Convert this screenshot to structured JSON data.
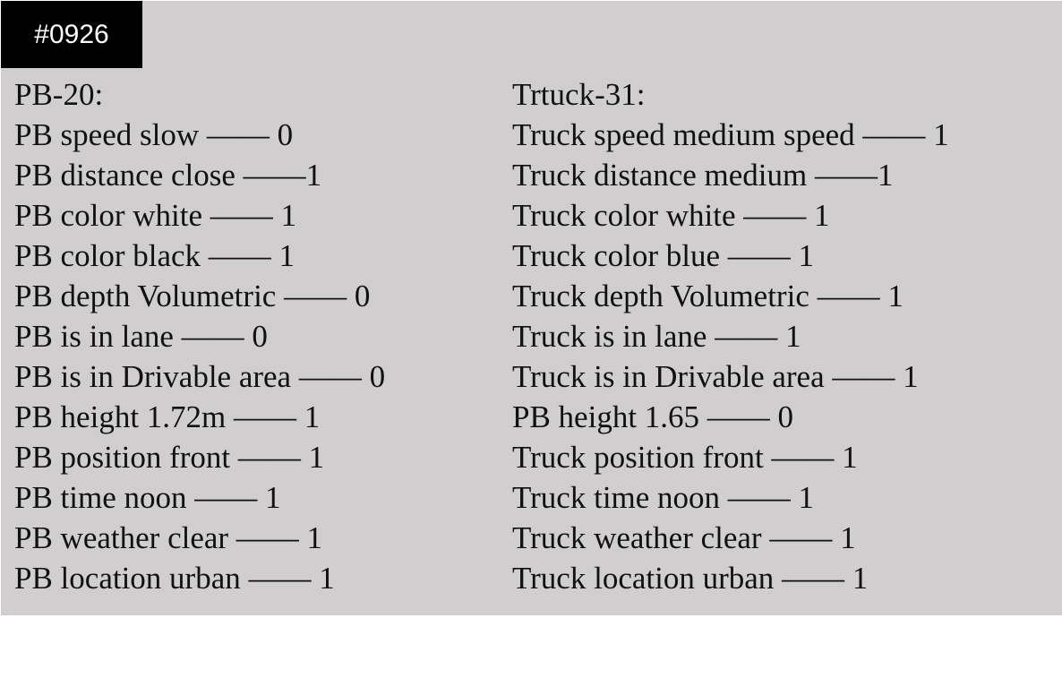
{
  "badge": "#0926",
  "left": {
    "title": "PB-20:",
    "lines": [
      "PB speed slow —— 0",
      "PB distance close ——1",
      "PB color white —— 1",
      "PB color black —— 1",
      "PB depth Volumetric —— 0",
      "PB is in lane —— 0",
      "PB is in Drivable area —— 0",
      "PB height 1.72m —— 1",
      "PB position front —— 1",
      "PB time noon —— 1",
      "PB weather clear —— 1",
      "PB location urban —— 1"
    ]
  },
  "right": {
    "title": "Trtuck-31:",
    "lines": [
      "Truck speed medium speed —— 1",
      "Truck distance medium ——1",
      "Truck color white —— 1",
      "Truck color blue —— 1",
      "Truck depth Volumetric —— 1",
      "Truck is in lane —— 1",
      "Truck is in Drivable area —— 1",
      "PB height 1.65 —— 0",
      "Truck position front —— 1",
      "Truck time noon —— 1",
      "Truck weather clear —— 1",
      "Truck location urban —— 1"
    ]
  }
}
